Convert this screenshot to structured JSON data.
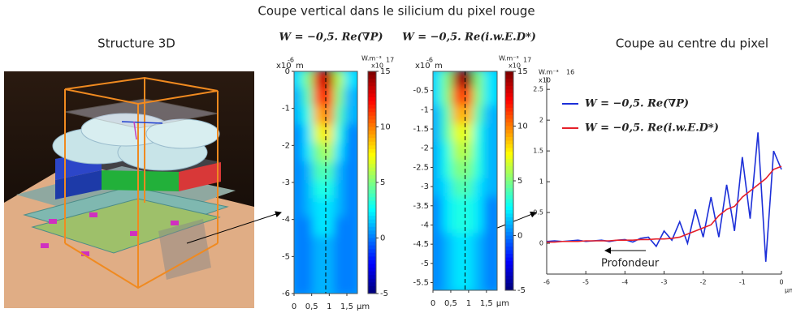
{
  "title": "Coupe vertical dans le silicium du pixel rouge",
  "structure_label": "Structure 3D",
  "profile_label": "Coupe au centre du pixel",
  "chart_data": [
    {
      "type": "heatmap",
      "title": "W = −0,5. Re(∇P)",
      "x": [
        0.15,
        0.45,
        0.75,
        1.05,
        1.35,
        1.65
      ],
      "y": [
        -0.25,
        -0.75,
        -1.25,
        -1.75,
        -2.25,
        -2.75,
        -3.25,
        -3.75,
        -4.25,
        -4.75,
        -5.25,
        -5.75
      ],
      "z": [
        [
          2,
          5,
          13,
          14,
          6,
          2
        ],
        [
          1,
          4,
          11,
          12,
          5,
          1
        ],
        [
          1,
          3,
          9,
          10,
          4,
          1
        ],
        [
          0,
          2,
          7,
          8,
          3,
          0
        ],
        [
          0,
          2,
          5,
          6,
          2,
          0
        ],
        [
          0,
          1,
          4,
          4,
          1,
          0
        ],
        [
          0,
          1,
          3,
          3,
          1,
          0
        ],
        [
          0,
          1,
          2,
          2,
          1,
          0
        ],
        [
          0,
          0,
          2,
          2,
          0,
          0
        ],
        [
          0,
          0,
          1,
          1,
          0,
          0
        ],
        [
          0,
          0,
          1,
          1,
          0,
          0
        ],
        [
          0,
          0,
          1,
          1,
          0,
          0
        ]
      ],
      "xlim": [
        0,
        1.8
      ],
      "xticks": [
        0,
        {
          "value": 0.5,
          "label": "0,5"
        },
        1,
        {
          "value": 1.5,
          "label": "1,5"
        }
      ],
      "x_unit": "µm",
      "ylim": [
        -6,
        0
      ],
      "yticks": [
        0,
        -1,
        -2,
        -3,
        -4,
        -5,
        -6
      ],
      "y_unit_multiplier": "x10",
      "y_unit_exponent": "-6",
      "y_unit": "m",
      "clim": [
        -5,
        15
      ],
      "cticks": [
        15,
        10,
        5,
        0,
        -5
      ],
      "colorbar_unit": "W.m⁻³",
      "colorbar_multiplier": "x10",
      "colorbar_exponent": "17"
    },
    {
      "type": "heatmap",
      "title": "W = −0,5. Re(i.w.E.D*)",
      "x": [
        0.15,
        0.45,
        0.75,
        1.05,
        1.35,
        1.65
      ],
      "y": [
        -0.24,
        -0.71,
        -1.19,
        -1.66,
        -2.14,
        -2.61,
        -3.09,
        -3.56,
        -4.04,
        -4.51,
        -4.99,
        -5.46
      ],
      "z": [
        [
          2,
          5,
          14,
          15,
          5,
          2
        ],
        [
          2,
          5,
          11,
          11,
          5,
          2
        ],
        [
          1,
          4,
          9,
          9,
          4,
          1
        ],
        [
          1,
          4,
          7,
          7,
          3,
          1
        ],
        [
          1,
          3,
          6,
          6,
          3,
          1
        ],
        [
          1,
          3,
          5,
          5,
          3,
          1
        ],
        [
          1,
          2,
          4,
          4,
          2,
          1
        ],
        [
          0,
          2,
          3,
          3,
          2,
          0
        ],
        [
          0,
          2,
          3,
          3,
          2,
          0
        ],
        [
          0,
          1,
          2,
          2,
          1,
          0
        ],
        [
          0,
          1,
          2,
          2,
          1,
          0
        ],
        [
          0,
          1,
          2,
          2,
          1,
          0
        ]
      ],
      "xlim": [
        0,
        1.8
      ],
      "xticks": [
        0,
        {
          "value": 0.5,
          "label": "0,5"
        },
        1,
        {
          "value": 1.5,
          "label": "1,5"
        }
      ],
      "x_unit": "µm",
      "ylim": [
        -5.7,
        0
      ],
      "yticks": [
        -0.5,
        -1,
        -1.5,
        -2,
        -2.5,
        -3,
        -3.5,
        -4,
        -4.5,
        -5,
        -5.5
      ],
      "y_unit_multiplier": "x10",
      "y_unit_exponent": "-6",
      "y_unit": "m",
      "clim": [
        -5,
        15
      ],
      "cticks": [
        15,
        10,
        5,
        0,
        -5
      ],
      "colorbar_unit": "W.m⁻³",
      "colorbar_multiplier": "x10",
      "colorbar_exponent": "17"
    },
    {
      "type": "line",
      "x": [
        -6,
        -5.8,
        -5.6,
        -5.4,
        -5.2,
        -5,
        -4.8,
        -4.6,
        -4.4,
        -4.2,
        -4,
        -3.8,
        -3.6,
        -3.4,
        -3.2,
        -3,
        -2.8,
        -2.6,
        -2.4,
        -2.2,
        -2,
        -1.8,
        -1.6,
        -1.4,
        -1.2,
        -1,
        -0.8,
        -0.6,
        -0.4,
        -0.2,
        0
      ],
      "series": [
        {
          "name": "W = −0,5. Re(∇P)",
          "color": "#1c2fd8",
          "values": [
            0.03,
            0.04,
            0.03,
            0.04,
            0.05,
            0.03,
            0.04,
            0.05,
            0.03,
            0.05,
            0.06,
            0.02,
            0.08,
            0.1,
            -0.05,
            0.2,
            0.05,
            0.35,
            0,
            0.55,
            0.1,
            0.75,
            0.1,
            0.95,
            0.2,
            1.4,
            0.4,
            1.8,
            -0.3,
            1.5,
            1.2
          ]
        },
        {
          "name": "W = −0,5. Re(i.w.E.D*)",
          "color": "#e5202a",
          "values": [
            0.02,
            0.02,
            0.03,
            0.03,
            0.03,
            0.04,
            0.04,
            0.04,
            0.04,
            0.05,
            0.05,
            0.05,
            0.06,
            0.06,
            0.07,
            0.07,
            0.08,
            0.1,
            0.15,
            0.2,
            0.25,
            0.3,
            0.45,
            0.55,
            0.6,
            0.75,
            0.85,
            0.95,
            1.05,
            1.2,
            1.25
          ]
        }
      ],
      "xlim": [
        -6,
        0
      ],
      "xticks": [
        -6,
        -5,
        -4,
        -3,
        -2,
        -1,
        0
      ],
      "x_unit": "µm",
      "ylim": [
        -0.5,
        2.7
      ],
      "yticks": [
        0,
        0.5,
        1,
        1.5,
        2,
        2.5
      ],
      "y_unit": "W.m⁻³",
      "y_unit_multiplier": "x10",
      "y_unit_exponent": "16",
      "annotation": "Profondeur"
    }
  ]
}
